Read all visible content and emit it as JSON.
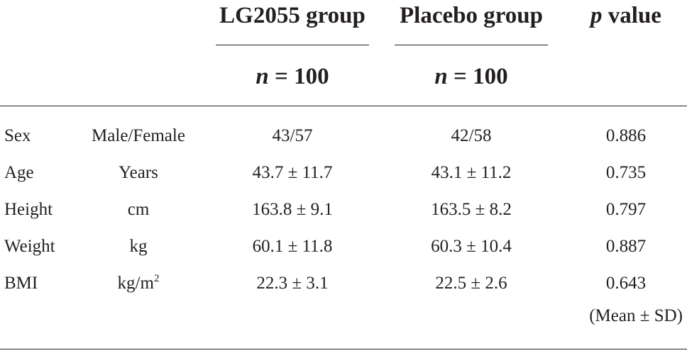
{
  "header": {
    "group1": "LG2055 group",
    "group2": "Placebo group",
    "p_italic": "p",
    "p_rest": " value"
  },
  "n_row": {
    "n_italic": "n",
    "group1_rest": " = 100",
    "group2_rest": " = 100"
  },
  "rows": [
    {
      "variable": "Sex",
      "unit": "Male/Female",
      "unit_sup": "",
      "group1": "43/57",
      "group2": "42/58",
      "p": "0.886"
    },
    {
      "variable": "Age",
      "unit": "Years",
      "unit_sup": "",
      "group1": "43.7 ± 11.7",
      "group2": "43.1 ± 11.2",
      "p": "0.735"
    },
    {
      "variable": "Height",
      "unit": "cm",
      "unit_sup": "",
      "group1": "163.8 ± 9.1",
      "group2": "163.5 ± 8.2",
      "p": "0.797"
    },
    {
      "variable": "Weight",
      "unit": "kg",
      "unit_sup": "",
      "group1": "60.1 ± 11.8",
      "group2": "60.3 ± 10.4",
      "p": "0.887"
    },
    {
      "variable": "BMI",
      "unit": "kg/m",
      "unit_sup": "2",
      "group1": "22.3 ± 3.1",
      "group2": "22.5 ± 2.6",
      "p": "0.643"
    }
  ],
  "note": "(Mean ± SD)"
}
